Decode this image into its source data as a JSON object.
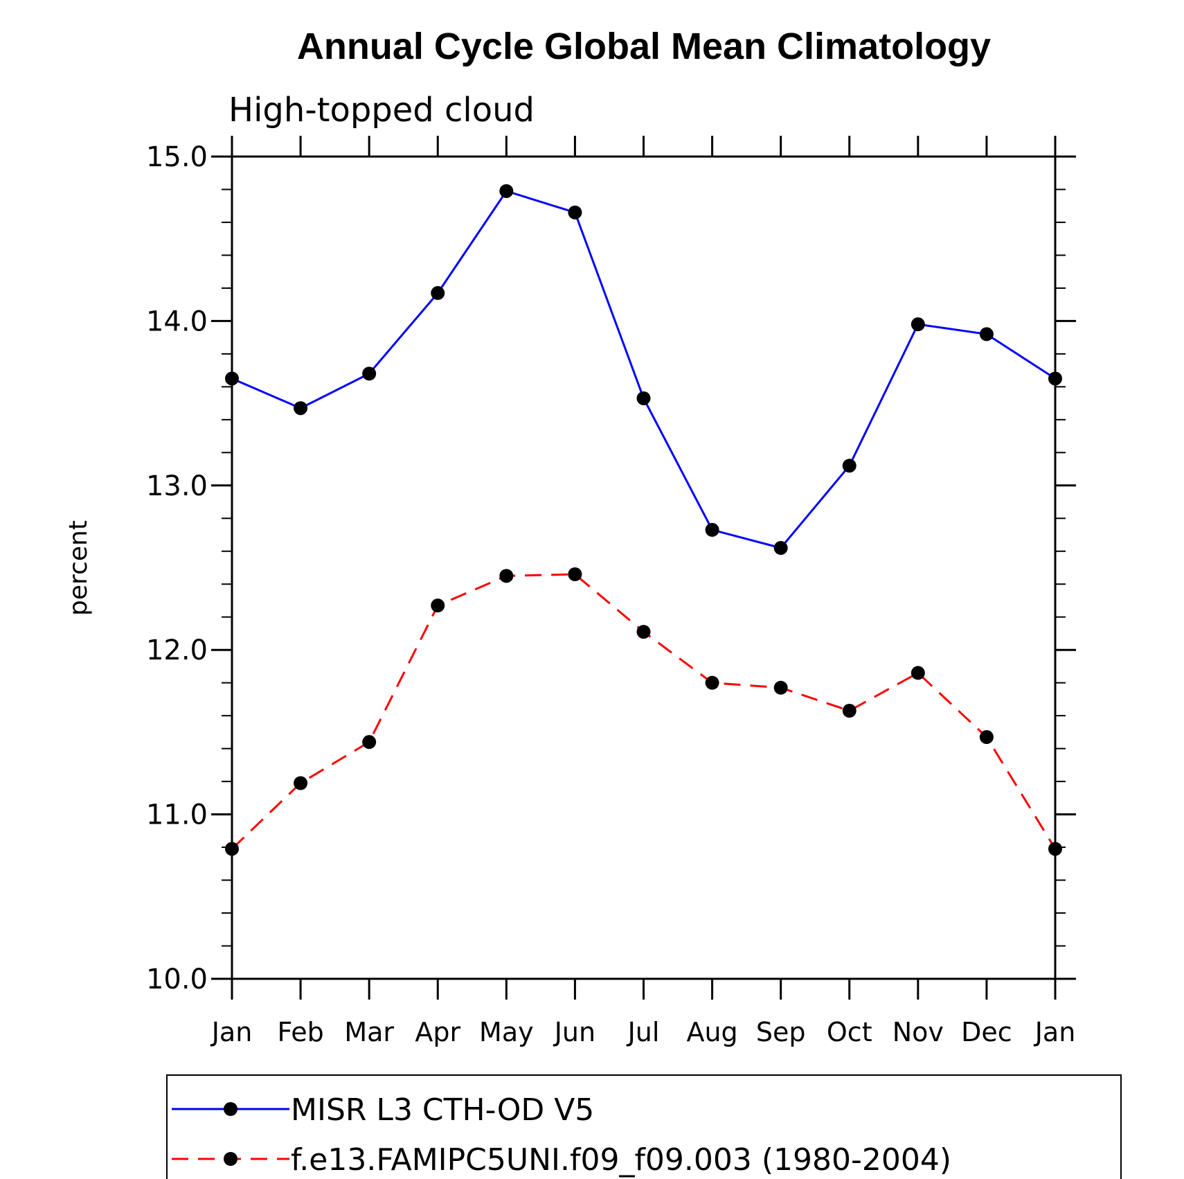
{
  "chart_data": {
    "type": "line",
    "title": "Annual Cycle Global Mean Climatology",
    "subtitle": "High-topped cloud",
    "xlabel": "",
    "ylabel": "percent",
    "categories": [
      "Jan",
      "Feb",
      "Mar",
      "Apr",
      "May",
      "Jun",
      "Jul",
      "Aug",
      "Sep",
      "Oct",
      "Nov",
      "Dec",
      "Jan"
    ],
    "ylim": [
      10.0,
      15.0
    ],
    "yticks": [
      "10.0",
      "11.0",
      "12.0",
      "13.0",
      "14.0",
      "15.0"
    ],
    "grid": false,
    "legend_position": "bottom",
    "series": [
      {
        "name": "MISR L3 CTH-OD V5",
        "color": "#0000ff",
        "dash": "solid",
        "marker": "filled-circle",
        "values": [
          13.65,
          13.47,
          13.68,
          14.17,
          14.79,
          14.66,
          13.53,
          12.73,
          12.62,
          13.12,
          13.98,
          13.92,
          13.65
        ]
      },
      {
        "name": "f.e13.FAMIPC5UNI.f09_f09.003 (1980-2004)",
        "color": "#ff0000",
        "dash": "dashed",
        "marker": "filled-circle",
        "values": [
          10.79,
          11.19,
          11.44,
          12.27,
          12.45,
          12.46,
          12.11,
          11.8,
          11.77,
          11.63,
          11.86,
          11.47,
          10.79
        ]
      }
    ]
  }
}
